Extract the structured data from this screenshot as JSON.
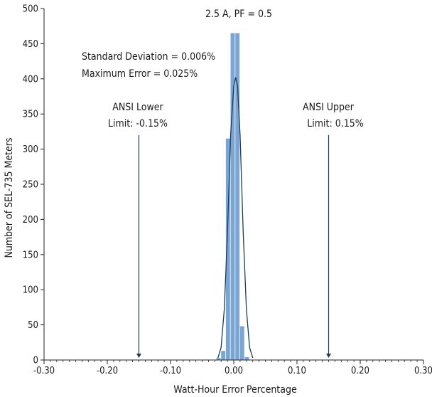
{
  "chart_data": {
    "type": "bar",
    "title": "2.5 A, PF = 0.5",
    "xlabel": "Watt-Hour Error Percentage",
    "ylabel": "Number of SEL-735 Meters",
    "xlim": [
      -0.3,
      0.3
    ],
    "ylim": [
      0,
      500
    ],
    "x_ticks": [
      -0.3,
      -0.2,
      -0.1,
      0.0,
      0.1,
      0.2,
      0.3
    ],
    "x_tick_labels": [
      "-0.30",
      "-0.20",
      "-0.10",
      "0.00",
      "0.10",
      "0.20",
      "0.30"
    ],
    "y_ticks": [
      0,
      50,
      100,
      150,
      200,
      250,
      300,
      350,
      400,
      450,
      500
    ],
    "y_tick_labels": [
      "0",
      "50",
      "100",
      "150",
      "200",
      "250",
      "300",
      "350",
      "400",
      "450",
      "500"
    ],
    "grid": false,
    "bar_color": "#7ba6d4",
    "curve_color": "#1f3b57",
    "arrow_color": "#1f3b57",
    "bin_width": 0.0075,
    "histogram": [
      {
        "x": -0.0275,
        "value": 3
      },
      {
        "x": -0.02,
        "value": 13
      },
      {
        "x": -0.0125,
        "value": 315
      },
      {
        "x": -0.005,
        "value": 465
      },
      {
        "x": 0.0025,
        "value": 465
      },
      {
        "x": 0.01,
        "value": 48
      },
      {
        "x": 0.0175,
        "value": 4
      }
    ],
    "fit_curve": [
      {
        "x": -0.025,
        "value": 3
      },
      {
        "x": -0.02,
        "value": 18
      },
      {
        "x": -0.015,
        "value": 72
      },
      {
        "x": -0.01,
        "value": 180
      },
      {
        "x": -0.005,
        "value": 320
      },
      {
        "x": 0.0,
        "value": 390
      },
      {
        "x": 0.003,
        "value": 402
      },
      {
        "x": 0.006,
        "value": 390
      },
      {
        "x": 0.01,
        "value": 320
      },
      {
        "x": 0.015,
        "value": 180
      },
      {
        "x": 0.02,
        "value": 72
      },
      {
        "x": 0.025,
        "value": 18
      },
      {
        "x": 0.03,
        "value": 3
      }
    ],
    "annotations": {
      "stats_line1": "Standard Deviation = 0.006%",
      "stats_line2": "Maximum Error = 0.025%",
      "lower_line1": "ANSI Lower",
      "lower_line2": "Limit: -0.15%",
      "upper_line1": "ANSI Upper",
      "upper_line2": "Limit:  0.15%"
    },
    "limits": {
      "lower": -0.15,
      "upper": 0.15,
      "arrow_top": 320
    }
  }
}
